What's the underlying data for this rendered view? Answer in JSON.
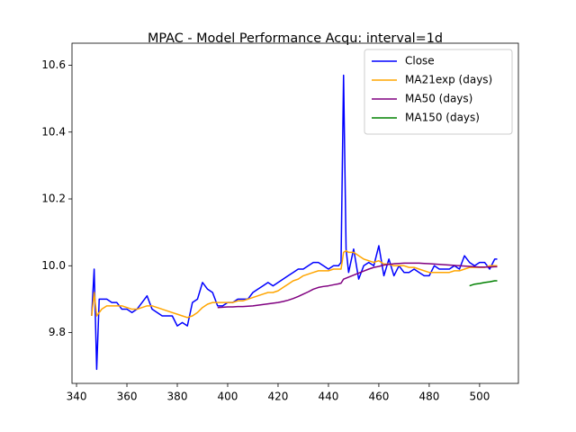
{
  "chart_data": {
    "type": "line",
    "title": "MPAC - Model Performance Acqu: interval=1d",
    "x": [
      346,
      347,
      348,
      349,
      350,
      352,
      354,
      356,
      358,
      360,
      362,
      364,
      366,
      368,
      370,
      372,
      374,
      376,
      378,
      380,
      382,
      384,
      386,
      388,
      390,
      392,
      394,
      396,
      398,
      400,
      402,
      404,
      406,
      408,
      410,
      412,
      414,
      416,
      418,
      420,
      422,
      424,
      426,
      428,
      430,
      432,
      434,
      436,
      438,
      440,
      442,
      444,
      445,
      446,
      447,
      448,
      450,
      452,
      454,
      456,
      458,
      460,
      462,
      464,
      466,
      468,
      470,
      472,
      474,
      476,
      478,
      480,
      482,
      484,
      486,
      488,
      490,
      492,
      494,
      496,
      498,
      500,
      502,
      504,
      506,
      507
    ],
    "series": [
      {
        "name": "Close",
        "color": "#0000ff",
        "values": [
          9.85,
          9.99,
          9.69,
          9.9,
          9.9,
          9.9,
          9.89,
          9.89,
          9.87,
          9.87,
          9.86,
          9.87,
          9.89,
          9.91,
          9.87,
          9.86,
          9.85,
          9.85,
          9.85,
          9.82,
          9.83,
          9.82,
          9.89,
          9.9,
          9.95,
          9.93,
          9.92,
          9.88,
          9.88,
          9.89,
          9.89,
          9.9,
          9.9,
          9.9,
          9.92,
          9.93,
          9.94,
          9.95,
          9.94,
          9.95,
          9.96,
          9.97,
          9.98,
          9.99,
          9.99,
          10.0,
          10.01,
          10.01,
          10.0,
          9.99,
          10.0,
          10.0,
          10.01,
          10.57,
          10.05,
          9.98,
          10.05,
          9.96,
          10.0,
          10.01,
          10.0,
          10.06,
          9.97,
          10.02,
          9.97,
          10.0,
          9.98,
          9.98,
          9.99,
          9.98,
          9.97,
          9.97,
          10.0,
          9.99,
          9.99,
          9.99,
          10.0,
          9.99,
          10.03,
          10.01,
          10.0,
          10.01,
          10.01,
          9.99,
          10.02,
          10.02
        ]
      },
      {
        "name": "MA21exp (days)",
        "color": "#ffa500",
        "values": [
          9.85,
          9.92,
          9.85,
          9.86,
          9.87,
          9.88,
          9.88,
          9.88,
          9.88,
          9.875,
          9.87,
          9.87,
          9.875,
          9.88,
          9.88,
          9.875,
          9.87,
          9.865,
          9.86,
          9.855,
          9.85,
          9.845,
          9.85,
          9.86,
          9.875,
          9.885,
          9.89,
          9.89,
          9.89,
          9.89,
          9.89,
          9.895,
          9.895,
          9.9,
          9.905,
          9.91,
          9.915,
          9.92,
          9.92,
          9.925,
          9.935,
          9.945,
          9.955,
          9.96,
          9.97,
          9.975,
          9.98,
          9.985,
          9.985,
          9.985,
          9.99,
          9.99,
          9.99,
          10.04,
          10.045,
          10.04,
          10.04,
          10.03,
          10.02,
          10.015,
          10.01,
          10.015,
          10.005,
          10.005,
          10.0,
          10.0,
          10.0,
          9.995,
          9.995,
          9.99,
          9.985,
          9.98,
          9.98,
          9.98,
          9.98,
          9.98,
          9.985,
          9.985,
          9.99,
          9.995,
          9.995,
          9.995,
          9.995,
          10.0,
          10.0,
          10.0
        ]
      },
      {
        "name": "MA50 (days)",
        "color": "#800080",
        "values": [
          null,
          null,
          null,
          null,
          null,
          null,
          null,
          null,
          null,
          null,
          null,
          null,
          null,
          null,
          null,
          null,
          null,
          null,
          null,
          null,
          null,
          null,
          null,
          null,
          null,
          null,
          null,
          9.875,
          9.876,
          9.877,
          9.877,
          9.878,
          9.878,
          9.879,
          9.88,
          9.882,
          9.884,
          9.886,
          9.888,
          9.89,
          9.893,
          9.897,
          9.902,
          9.908,
          9.915,
          9.922,
          9.93,
          9.935,
          9.938,
          9.94,
          9.943,
          9.946,
          9.948,
          9.96,
          9.963,
          9.966,
          9.972,
          9.978,
          9.984,
          9.99,
          9.995,
          9.998,
          10.002,
          10.004,
          10.006,
          10.007,
          10.008,
          10.008,
          10.008,
          10.008,
          10.007,
          10.006,
          10.005,
          10.004,
          10.003,
          10.002,
          10.001,
          10.0,
          9.999,
          9.998,
          9.997,
          9.996,
          9.996,
          9.996,
          9.997,
          9.997
        ]
      },
      {
        "name": "MA150 (days)",
        "color": "#008000",
        "values": [
          null,
          null,
          null,
          null,
          null,
          null,
          null,
          null,
          null,
          null,
          null,
          null,
          null,
          null,
          null,
          null,
          null,
          null,
          null,
          null,
          null,
          null,
          null,
          null,
          null,
          null,
          null,
          null,
          null,
          null,
          null,
          null,
          null,
          null,
          null,
          null,
          null,
          null,
          null,
          null,
          null,
          null,
          null,
          null,
          null,
          null,
          null,
          null,
          null,
          null,
          null,
          null,
          null,
          null,
          null,
          null,
          null,
          null,
          null,
          null,
          null,
          null,
          null,
          null,
          null,
          null,
          null,
          null,
          null,
          null,
          null,
          null,
          null,
          null,
          null,
          null,
          null,
          null,
          null,
          9.94,
          9.945,
          9.947,
          9.95,
          9.952,
          9.955,
          9.955
        ]
      }
    ],
    "xlim": [
      338.2,
      515.4
    ],
    "ylim": [
      9.648,
      10.639
    ],
    "xticks": [
      340,
      360,
      380,
      400,
      420,
      440,
      460,
      480,
      500
    ],
    "yticks": [
      9.8,
      {
        "value": 10,
        "label": "10.0"
      },
      10.2,
      10.4,
      10.6
    ],
    "legend": "upper right"
  }
}
